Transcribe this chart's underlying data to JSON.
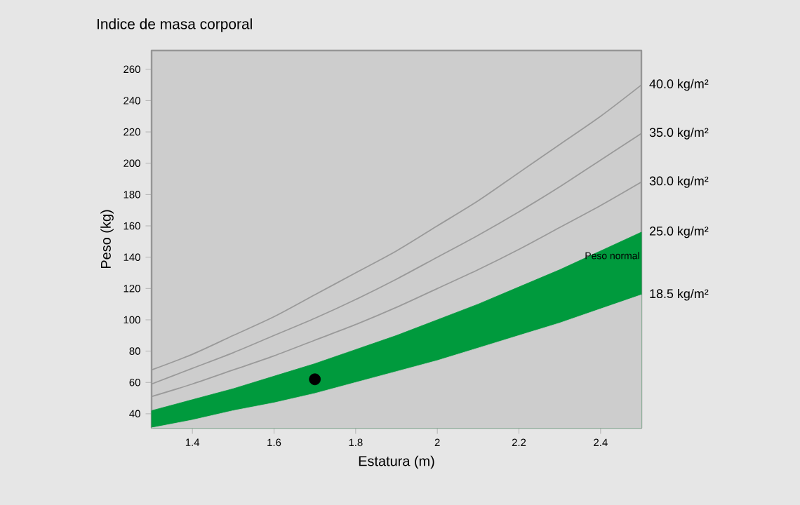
{
  "chart_data": {
    "type": "line",
    "title": "Indice de masa corporal",
    "xlabel": "Estatura (m)",
    "ylabel": "Peso (kg)",
    "xlim": [
      1.3,
      2.5
    ],
    "ylim": [
      31,
      272
    ],
    "xticks": [
      1.4,
      1.6,
      1.8,
      2,
      2.2,
      2.4
    ],
    "yticks": [
      40,
      60,
      80,
      100,
      120,
      140,
      160,
      180,
      200,
      220,
      240,
      260
    ],
    "grid": false,
    "line_style": "solid",
    "series": [
      {
        "name": "25.0 kg/m²",
        "type": "area",
        "color": "#009a3d",
        "x": [
          1.3,
          1.4,
          1.5,
          1.6,
          1.7,
          1.8,
          1.9,
          2.0,
          2.1,
          2.2,
          2.3,
          2.4,
          2.5
        ],
        "values": [
          42,
          49,
          56,
          64,
          72,
          81,
          90,
          100,
          110,
          121,
          132,
          144,
          156
        ]
      },
      {
        "name": "18.5 kg/m²",
        "type": "area",
        "color": "#cdcdcd",
        "x": [
          1.3,
          1.4,
          1.5,
          1.6,
          1.7,
          1.8,
          1.9,
          2.0,
          2.1,
          2.2,
          2.3,
          2.4,
          2.5
        ],
        "values": [
          31,
          36,
          42,
          47,
          53,
          60,
          67,
          74,
          82,
          90,
          98,
          107,
          116
        ]
      },
      {
        "name": "30.0 kg/m²",
        "type": "line",
        "color": "#9a9a9a",
        "x": [
          1.3,
          1.4,
          1.5,
          1.6,
          1.7,
          1.8,
          1.9,
          2.0,
          2.1,
          2.2,
          2.3,
          2.4,
          2.5
        ],
        "values": [
          51,
          59,
          68,
          77,
          87,
          97,
          108,
          120,
          132,
          145,
          159,
          173,
          188
        ]
      },
      {
        "name": "35.0 kg/m²",
        "type": "line",
        "color": "#9a9a9a",
        "x": [
          1.3,
          1.4,
          1.5,
          1.6,
          1.7,
          1.8,
          1.9,
          2.0,
          2.1,
          2.2,
          2.3,
          2.4,
          2.5
        ],
        "values": [
          59,
          69,
          79,
          90,
          101,
          113,
          126,
          140,
          154,
          169,
          185,
          202,
          219
        ]
      },
      {
        "name": "40.0 kg/m²",
        "color": "#9a9a9a",
        "x": [
          1.3,
          1.4,
          1.5,
          1.6,
          1.7,
          1.8,
          1.9,
          2.0,
          2.1,
          2.2,
          2.3,
          2.4,
          2.5
        ],
        "values": [
          68,
          78,
          90,
          102,
          116,
          130,
          144,
          160,
          176,
          194,
          212,
          230,
          250
        ]
      },
      {
        "type": "scatter",
        "color": "#000000",
        "x": [
          1.7
        ],
        "values": [
          62
        ]
      }
    ],
    "annotations": [
      "Peso normal"
    ]
  }
}
